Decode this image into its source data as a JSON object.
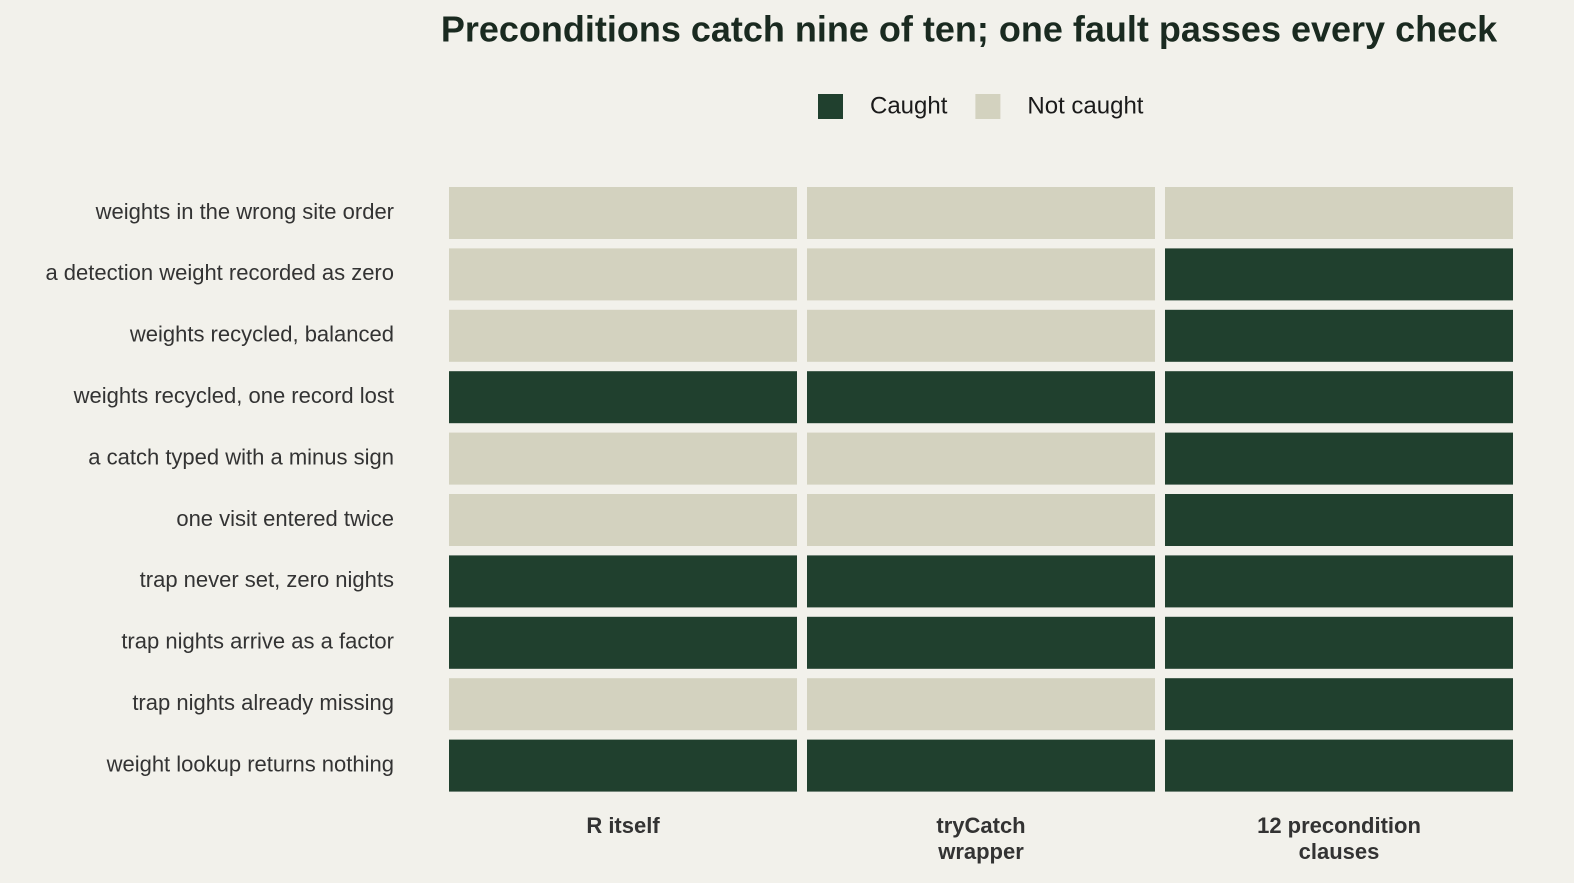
{
  "chart_data": {
    "type": "tile",
    "title": "Preconditions catch nine of ten; one fault passes every check",
    "rows": [
      "weights in the wrong site order",
      "a detection weight recorded as zero",
      "weights recycled, balanced",
      "weights recycled, one record lost",
      "a catch typed with a minus sign",
      "one visit entered twice",
      "trap never set, zero nights",
      "trap nights arrive as a factor",
      "trap nights already missing",
      "weight lookup returns nothing"
    ],
    "columns": [
      "R itself",
      "tryCatch\nwrapper",
      "12 precondition\nclauses"
    ],
    "legend": [
      {
        "label": "Caught",
        "value": 1,
        "color": "#20402e"
      },
      {
        "label": "Not caught",
        "value": 0,
        "color": "#d3d2bf"
      }
    ],
    "values": [
      [
        0,
        0,
        0
      ],
      [
        0,
        0,
        1
      ],
      [
        0,
        0,
        1
      ],
      [
        1,
        1,
        1
      ],
      [
        0,
        0,
        1
      ],
      [
        0,
        0,
        1
      ],
      [
        1,
        1,
        1
      ],
      [
        1,
        1,
        1
      ],
      [
        0,
        0,
        1
      ],
      [
        1,
        1,
        1
      ]
    ]
  }
}
